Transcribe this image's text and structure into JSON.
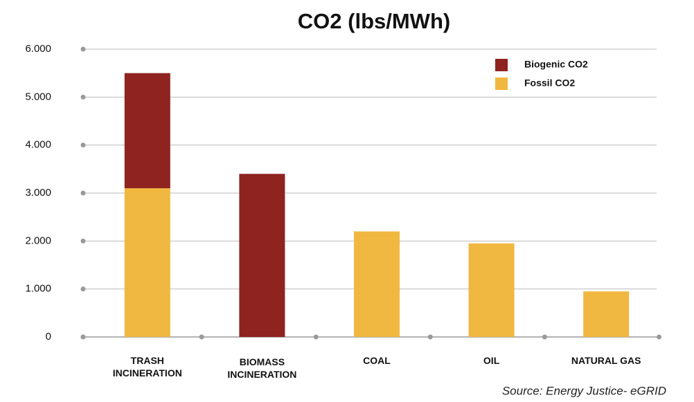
{
  "chart_data": {
    "type": "stacked_bar",
    "title": "CO2 (lbs/MWh)",
    "categories": [
      "TRASH INCINERATION",
      "BIOMASS INCINERATION",
      "COAL",
      "OIL",
      "NATURAL GAS"
    ],
    "series": [
      {
        "name": "Biogenic CO2",
        "color": "#8e2320",
        "values": [
          2400,
          3400,
          0,
          0,
          0
        ]
      },
      {
        "name": "Fossil CO2",
        "color": "#f0b840",
        "values": [
          3100,
          0,
          2200,
          1950,
          950
        ]
      }
    ],
    "ylim": [
      0,
      6000
    ],
    "yticks": [
      0,
      {
        "value": 1000,
        "label": "1.000"
      },
      {
        "value": 2000,
        "label": "2.000"
      },
      {
        "value": 3000,
        "label": "3.000"
      },
      {
        "value": 4000,
        "label": "4.000"
      },
      {
        "value": 5000,
        "label": "5.000"
      },
      {
        "value": 6000,
        "label": "6.000"
      }
    ],
    "grid": true,
    "legend": "top-right",
    "annotations": [
      "Source: Energy Justice- eGRID"
    ]
  }
}
